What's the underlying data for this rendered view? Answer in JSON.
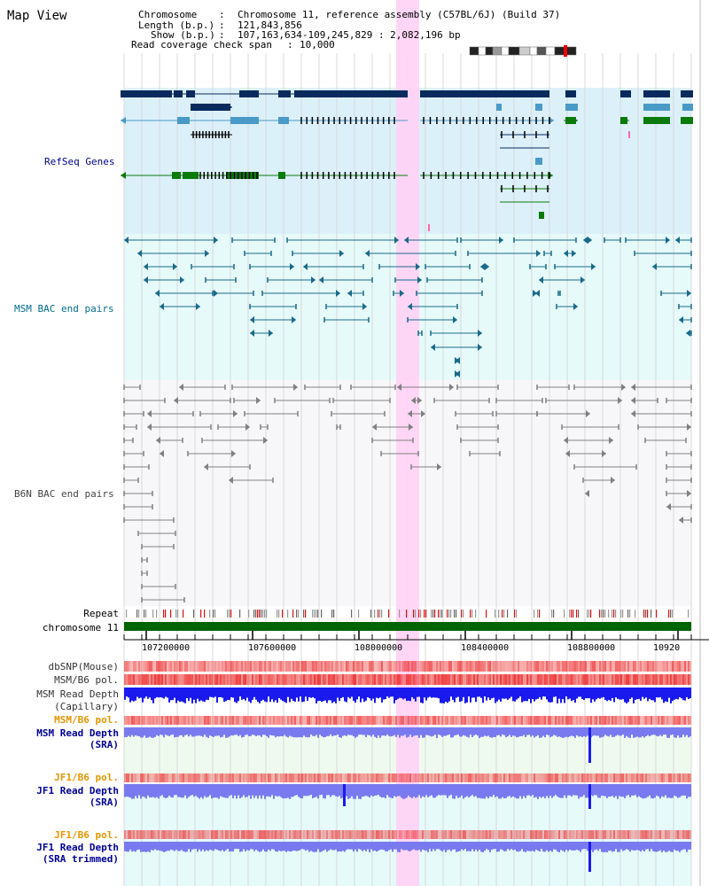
{
  "view_title": "Map View",
  "info": {
    "chromosome_label": "Chromosome",
    "chromosome_value": "Chromosome 11, reference assembly (C57BL/6J) (Build 37)",
    "length_label": "Length (b.p.)",
    "length_value": "121,843,856",
    "show_label": "Show (b.p.)",
    "show_value": "107,163,634-109,245,829 : 2,082,196 bp",
    "coverage_label": "Read coverage check span",
    "coverage_value": "10,000"
  },
  "tracks": {
    "refseq": "RefSeq Genes",
    "msm_bac": "MSM BAC end pairs",
    "b6n_bac": "B6N BAC end pairs",
    "repeat": "Repeat",
    "chromosome": "chromosome 11",
    "dbsnp": "dbSNP(Mouse)",
    "msm_b6_pol_1": "MSM/B6 pol.",
    "msm_depth_cap_1": "MSM Read Depth",
    "msm_depth_cap_2": "(Capillary)",
    "msm_b6_pol_2": "MSM/B6 pol.",
    "msm_depth_sra_1": "MSM Read Depth",
    "msm_depth_sra_2": "(SRA)",
    "jf1_b6_pol_1": "JF1/B6 pol.",
    "jf1_depth_sra_1": "JF1 Read Depth",
    "jf1_depth_sra_2": "(SRA)",
    "jf1_b6_pol_2": "JF1/B6 pol.",
    "jf1_depth_trim_1": "JF1 Read Depth",
    "jf1_depth_trim_2": "(SRA trimmed)"
  },
  "axis": {
    "tick_labels": [
      "107200000",
      "107600000",
      "108000000",
      "108400000",
      "108800000",
      "10920"
    ]
  },
  "colors": {
    "refseq_bg": "#dcf0fa",
    "bac_bg": "#e6fafa",
    "b6n_bg": "#f7f7fa",
    "highlight": "#ffd2f5",
    "refseq_dark": "#0a2a5e",
    "refseq_light": "#4a9ac8",
    "refseq_green": "#0a7a0a",
    "msm_bac": "#1a6a8a",
    "b6n_bac": "#808080",
    "chromosome": "#006400",
    "depth_blue": "#1a1aee",
    "depth_light": "#7a7af0",
    "pol_red": "#ee3333"
  }
}
